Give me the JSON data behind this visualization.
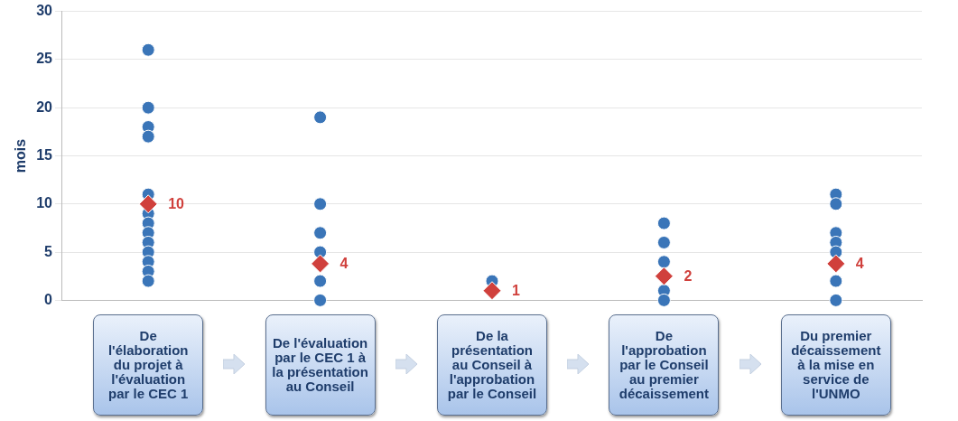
{
  "chart_data": {
    "type": "scatter",
    "ylabel": "mois",
    "categories": [
      "De l'élaboration du projet à l'évaluation par le CEC 1",
      "De l'évaluation par le CEC 1 à la présentation au Conseil",
      "De la présentation au Conseil à l'approbation par le Conseil",
      "De l'approbation par le Conseil au premier décaissement",
      "Du premier décaissement à la mise en service de l'UNMO"
    ],
    "series": [
      {
        "color": "#3a75b8",
        "marker": "circle",
        "x": [
          "De l'élaboration du projet à l'évaluation par le CEC 1",
          "De l'élaboration du projet à l'évaluation par le CEC 1",
          "De l'élaboration du projet à l'évaluation par le CEC 1",
          "De l'élaboration du projet à l'évaluation par le CEC 1",
          "De l'élaboration du projet à l'évaluation par le CEC 1",
          "De l'élaboration du projet à l'évaluation par le CEC 1",
          "De l'élaboration du projet à l'évaluation par le CEC 1",
          "De l'élaboration du projet à l'évaluation par le CEC 1",
          "De l'élaboration du projet à l'évaluation par le CEC 1",
          "De l'élaboration du projet à l'évaluation par le CEC 1",
          "De l'élaboration du projet à l'évaluation par le CEC 1",
          "De l'élaboration du projet à l'évaluation par le CEC 1",
          "De l'élaboration du projet à l'évaluation par le CEC 1",
          "De l'évaluation par le CEC 1 à la présentation au Conseil",
          "De l'évaluation par le CEC 1 à la présentation au Conseil",
          "De l'évaluation par le CEC 1 à la présentation au Conseil",
          "De l'évaluation par le CEC 1 à la présentation au Conseil",
          "De l'évaluation par le CEC 1 à la présentation au Conseil",
          "De l'évaluation par le CEC 1 à la présentation au Conseil",
          "De la présentation au Conseil à l'approbation par le Conseil",
          "De l'approbation par le Conseil au premier décaissement",
          "De l'approbation par le Conseil au premier décaissement",
          "De l'approbation par le Conseil au premier décaissement",
          "De l'approbation par le Conseil au premier décaissement",
          "De l'approbation par le Conseil au premier décaissement",
          "Du premier décaissement à la mise en service de l'UNMO",
          "Du premier décaissement à la mise en service de l'UNMO",
          "Du premier décaissement à la mise en service de l'UNMO",
          "Du premier décaissement à la mise en service de l'UNMO",
          "Du premier décaissement à la mise en service de l'UNMO",
          "Du premier décaissement à la mise en service de l'UNMO",
          "Du premier décaissement à la mise en service de l'UNMO"
        ],
        "values": [
          26,
          20,
          18,
          17,
          11,
          9,
          8,
          7,
          6,
          5,
          4,
          3,
          2,
          19,
          10,
          7,
          5,
          2,
          0,
          2,
          8,
          6,
          4,
          1,
          0,
          11,
          10,
          7,
          6,
          5,
          2,
          0
        ]
      },
      {
        "color": "#d0403c",
        "marker": "diamond",
        "x": [
          "De l'élaboration du projet à l'évaluation par le CEC 1",
          "De l'évaluation par le CEC 1 à la présentation au Conseil",
          "De la présentation au Conseil à l'approbation par le Conseil",
          "De l'approbation par le Conseil au premier décaissement",
          "Du premier décaissement à la mise en service de l'UNMO"
        ],
        "values": [
          10,
          3.8,
          1,
          2.5,
          3.8
        ],
        "value_labels": [
          "10",
          "4",
          "1",
          "2",
          "4"
        ]
      }
    ],
    "ylim": [
      0,
      30
    ],
    "yticks": [
      0,
      5,
      10,
      15,
      20,
      25,
      30
    ],
    "grid": "y"
  }
}
